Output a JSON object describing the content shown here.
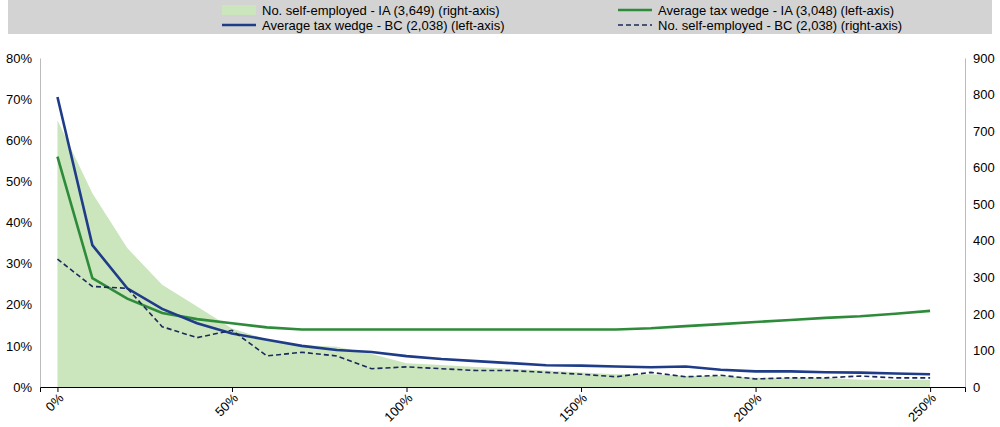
{
  "chart_data": {
    "type": "line",
    "x": [
      0,
      10,
      20,
      30,
      40,
      50,
      60,
      70,
      80,
      90,
      100,
      110,
      120,
      130,
      140,
      150,
      160,
      170,
      180,
      190,
      200,
      210,
      220,
      230,
      240,
      250
    ],
    "xlim": [
      -5,
      260
    ],
    "xticks": [
      {
        "value": 0,
        "label": "0%"
      },
      {
        "value": 50,
        "label": "50%"
      },
      {
        "value": 100,
        "label": "100%"
      },
      {
        "value": 150,
        "label": "150%"
      },
      {
        "value": 200,
        "label": "200%"
      },
      {
        "value": 250,
        "label": "250%"
      }
    ],
    "ylim": [
      0,
      80
    ],
    "yticks": [
      {
        "value": 0,
        "label": "0%"
      },
      {
        "value": 10,
        "label": "10%"
      },
      {
        "value": 20,
        "label": "20%"
      },
      {
        "value": 30,
        "label": "30%"
      },
      {
        "value": 40,
        "label": "40%"
      },
      {
        "value": 50,
        "label": "50%"
      },
      {
        "value": 60,
        "label": "60%"
      },
      {
        "value": 70,
        "label": "70%"
      },
      {
        "value": 80,
        "label": "80%"
      }
    ],
    "y2lim": [
      0,
      900
    ],
    "y2ticks": [
      0,
      100,
      200,
      300,
      400,
      500,
      600,
      700,
      800,
      900
    ],
    "grid": false,
    "legend": "top",
    "series": [
      {
        "name": "No. self-employed - IA (3,649) (right-axis)",
        "type": "area",
        "axis": "y2",
        "color": "#cbe5bd",
        "values": [
          730,
          530,
          380,
          280,
          220,
          160,
          130,
          115,
          110,
          90,
          65,
          60,
          55,
          50,
          45,
          40,
          35,
          35,
          30,
          30,
          25,
          25,
          25,
          20,
          20,
          20
        ]
      },
      {
        "name": "Average tax wedge - IA (3,048) (left-axis)",
        "type": "line",
        "color": "#2e8b3a",
        "line_style": "solid",
        "values": [
          56,
          26.5,
          21.5,
          18,
          16.5,
          15.5,
          14.5,
          14,
          14,
          14,
          14,
          14,
          14,
          14,
          14,
          14,
          14,
          14.3,
          14.8,
          15.3,
          15.8,
          16.3,
          16.8,
          17.2,
          17.8,
          18.5
        ]
      },
      {
        "name": "Average tax wedge - BC (2,038) (left-axis)",
        "type": "line",
        "color": "#1f3c88",
        "line_style": "solid",
        "values": [
          70.5,
          34.5,
          24,
          19,
          15.5,
          13,
          11.5,
          10,
          9,
          8.5,
          7.5,
          6.8,
          6.3,
          5.8,
          5.3,
          5.2,
          5,
          4.8,
          5,
          4.2,
          3.8,
          3.8,
          3.6,
          3.5,
          3.3,
          3.1
        ]
      },
      {
        "name": "No. self-employed - BC (2,038) (right-axis)",
        "type": "line",
        "axis": "y2",
        "color": "#1a2a5a",
        "line_style": "dashed",
        "values": [
          350,
          275,
          270,
          165,
          135,
          155,
          85,
          95,
          85,
          50,
          55,
          50,
          45,
          45,
          40,
          35,
          28,
          40,
          28,
          32,
          22,
          25,
          25,
          30,
          25,
          25
        ]
      }
    ]
  }
}
